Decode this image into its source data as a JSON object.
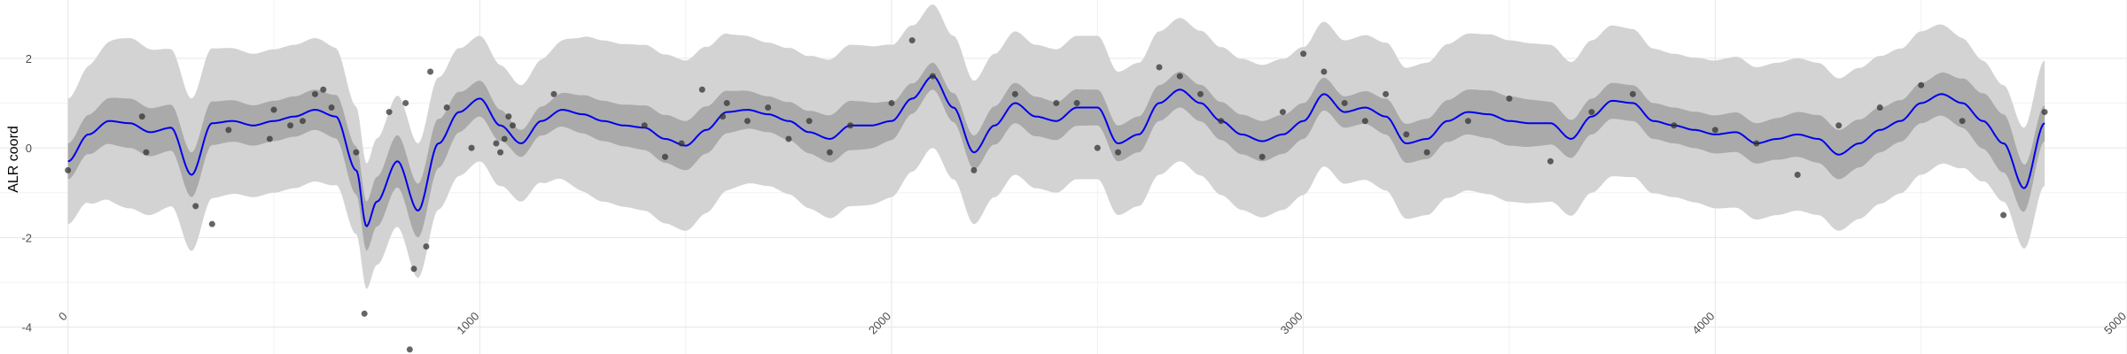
{
  "chart_data": {
    "type": "line",
    "title": "",
    "xlabel": "",
    "ylabel": "ALR coord",
    "xlim": [
      -165,
      5000
    ],
    "ylim": [
      -4.6,
      3.3
    ],
    "x_ticks": [
      0,
      1000,
      2000,
      3000,
      4000,
      5000
    ],
    "y_ticks": [
      2,
      0,
      -2,
      -4
    ],
    "grid": true,
    "legend": "none",
    "colors": {
      "mean_line": "#0000ee",
      "inner_band": "#aaaaaa",
      "outer_band": "#d3d3d3",
      "points": "#333333",
      "grid_major": "#e6e6e6",
      "grid_minor": "#f2f2f2"
    },
    "series": [
      {
        "kind": "mean",
        "x": [
          0,
          50,
          100,
          150,
          200,
          250,
          300,
          350,
          400,
          450,
          500,
          550,
          600,
          650,
          700,
          725,
          750,
          800,
          850,
          900,
          950,
          1000,
          1050,
          1100,
          1150,
          1200,
          1250,
          1300,
          1350,
          1400,
          1450,
          1500,
          1550,
          1600,
          1650,
          1700,
          1750,
          1800,
          1850,
          1900,
          1950,
          2000,
          2050,
          2100,
          2150,
          2200,
          2250,
          2300,
          2350,
          2400,
          2450,
          2500,
          2550,
          2600,
          2650,
          2700,
          2750,
          2800,
          2850,
          2900,
          2950,
          3000,
          3050,
          3100,
          3150,
          3200,
          3250,
          3300,
          3350,
          3400,
          3450,
          3500,
          3550,
          3600,
          3650,
          3700,
          3750,
          3800,
          3850,
          3900,
          3950,
          4000,
          4050,
          4100,
          4150,
          4200,
          4250,
          4300,
          4350,
          4400,
          4450,
          4500,
          4550,
          4600,
          4650,
          4700,
          4750,
          4800
        ],
        "y": [
          -0.3,
          0.3,
          0.6,
          0.55,
          0.35,
          0.45,
          -0.6,
          0.55,
          0.6,
          0.5,
          0.6,
          0.7,
          0.85,
          0.7,
          -0.5,
          -1.75,
          -1.2,
          -0.3,
          -1.4,
          0.1,
          0.8,
          1.1,
          0.5,
          0.1,
          0.6,
          0.85,
          0.75,
          0.6,
          0.5,
          0.45,
          0.2,
          0.05,
          0.4,
          0.8,
          0.85,
          0.75,
          0.6,
          0.35,
          0.2,
          0.5,
          0.5,
          0.6,
          1.1,
          1.6,
          0.9,
          -0.1,
          0.5,
          1.0,
          0.7,
          0.6,
          0.9,
          0.9,
          0.1,
          0.3,
          1.0,
          1.3,
          1.0,
          0.6,
          0.3,
          0.15,
          0.3,
          0.6,
          1.2,
          0.8,
          0.9,
          0.7,
          0.1,
          0.2,
          0.6,
          0.8,
          0.75,
          0.6,
          0.55,
          0.55,
          0.2,
          0.7,
          1.05,
          1.0,
          0.6,
          0.5,
          0.4,
          0.3,
          0.35,
          0.1,
          0.2,
          0.3,
          0.2,
          -0.15,
          0.1,
          0.4,
          0.6,
          1.0,
          1.2,
          1.0,
          0.6,
          0.1,
          -0.9,
          0.55
        ]
      },
      {
        "kind": "inner_band_halfwidth",
        "x": [
          0,
          150,
          300,
          450,
          600,
          725,
          850,
          1000,
          1100,
          1300,
          1500,
          1700,
          1900,
          2100,
          2300,
          2500,
          2700,
          2900,
          3100,
          3300,
          3500,
          3700,
          3900,
          4100,
          4300,
          4500,
          4700,
          4800
        ],
        "y": [
          0.4,
          0.55,
          0.5,
          0.45,
          0.45,
          0.55,
          0.6,
          0.4,
          0.3,
          0.45,
          0.55,
          0.4,
          0.55,
          0.3,
          0.45,
          0.4,
          0.4,
          0.45,
          0.35,
          0.45,
          0.55,
          0.4,
          0.4,
          0.45,
          0.55,
          0.45,
          0.65,
          0.4
        ]
      },
      {
        "kind": "outer_band_halfwidth",
        "x": [
          0,
          150,
          300,
          450,
          600,
          725,
          850,
          1000,
          1100,
          1300,
          1500,
          1700,
          1900,
          2100,
          2300,
          2500,
          2700,
          2900,
          3100,
          3300,
          3500,
          3700,
          3900,
          4100,
          4300,
          4500,
          4700,
          4800
        ],
        "y": [
          1.4,
          1.9,
          1.7,
          1.6,
          1.6,
          1.4,
          1.5,
          1.4,
          1.3,
          1.8,
          1.9,
          1.6,
          1.8,
          1.6,
          1.6,
          1.6,
          1.6,
          1.7,
          1.6,
          1.7,
          1.8,
          1.7,
          1.6,
          1.7,
          1.7,
          1.6,
          1.3,
          1.4
        ]
      },
      {
        "kind": "points",
        "x": [
          0,
          180,
          190,
          310,
          350,
          390,
          490,
          500,
          540,
          570,
          600,
          620,
          640,
          700,
          720,
          780,
          820,
          830,
          840,
          870,
          880,
          920,
          980,
          1040,
          1050,
          1060,
          1070,
          1080,
          1180,
          1400,
          1450,
          1490,
          1540,
          1590,
          1600,
          1650,
          1700,
          1750,
          1800,
          1850,
          1900,
          2000,
          2050,
          2100,
          2200,
          2300,
          2400,
          2450,
          2500,
          2550,
          2650,
          2700,
          2750,
          2800,
          2900,
          2950,
          3000,
          3050,
          3100,
          3150,
          3200,
          3250,
          3300,
          3400,
          3500,
          3600,
          3700,
          3800,
          3900,
          4000,
          4100,
          4200,
          4300,
          4400,
          4500,
          4600,
          4700,
          4800
        ],
        "y": [
          -0.5,
          0.7,
          -0.1,
          -1.3,
          -1.7,
          0.4,
          0.2,
          0.85,
          0.5,
          0.6,
          1.2,
          1.3,
          0.9,
          -0.1,
          -3.7,
          0.8,
          1.0,
          -4.5,
          -2.7,
          -2.2,
          1.7,
          0.9,
          0.0,
          0.1,
          -0.1,
          0.2,
          0.7,
          0.5,
          1.2,
          0.5,
          -0.2,
          0.1,
          1.3,
          0.7,
          1.0,
          0.6,
          0.9,
          0.2,
          0.6,
          -0.1,
          0.5,
          1.0,
          2.4,
          1.6,
          -0.5,
          1.2,
          1.0,
          1.0,
          0.0,
          -0.1,
          1.8,
          1.6,
          1.2,
          0.6,
          -0.2,
          0.8,
          2.1,
          1.7,
          1.0,
          0.6,
          1.2,
          0.3,
          -0.1,
          0.6,
          1.1,
          -0.3,
          0.8,
          1.2,
          0.5,
          0.4,
          0.1,
          -0.6,
          0.5,
          0.9,
          1.4,
          0.6,
          -1.5,
          0.8
        ]
      }
    ]
  }
}
